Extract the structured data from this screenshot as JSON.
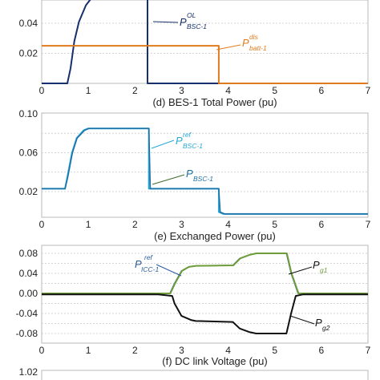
{
  "chart_data": [
    {
      "type": "line",
      "title": "",
      "x_ticks": [
        "0",
        "1",
        "2",
        "3",
        "4",
        "5",
        "6",
        "7"
      ],
      "xlim": [
        0,
        7
      ],
      "y_ticks": [
        "0.04",
        "0.02"
      ],
      "grid": true,
      "series": [
        {
          "name": "P_BSC-1^OL",
          "color": "#16306b",
          "points": [
            [
              0,
              0
            ],
            [
              0.55,
              0
            ],
            [
              0.62,
              0.01
            ],
            [
              0.7,
              0.028
            ],
            [
              0.8,
              0.041
            ],
            [
              0.95,
              0.052
            ],
            [
              1.1,
              0.058
            ],
            [
              2.27,
              0.066
            ],
            [
              2.27,
              0
            ],
            [
              7,
              0
            ]
          ]
        },
        {
          "name": "P_batt-1^dis",
          "color": "#e07b1c",
          "points": [
            [
              0,
              0.025
            ],
            [
              3.8,
              0.025
            ],
            [
              3.8,
              0
            ],
            [
              7,
              0
            ]
          ]
        }
      ],
      "annotations": [
        {
          "text": "P",
          "sup": "OL",
          "sub": "BSC-1",
          "color": "#16306b"
        },
        {
          "text": "P",
          "sup": "dis",
          "sub": "batt-1",
          "color": "#e07b1c"
        }
      ]
    },
    {
      "type": "line",
      "title": "(d) BES-1 Total Power (pu)",
      "x_ticks": [
        "0",
        "1",
        "2",
        "3",
        "4",
        "5",
        "6",
        "7"
      ],
      "xlim": [
        0,
        7
      ],
      "ylim": [
        0,
        0.1
      ],
      "y_ticks": [
        "0.10",
        "0.06",
        "0.02"
      ],
      "grid": true,
      "series": [
        {
          "name": "P_BSC-1^ref",
          "color": "#27a8d9",
          "points": [
            [
              0,
              0.023
            ],
            [
              0.5,
              0.023
            ],
            [
              0.55,
              0.035
            ],
            [
              0.65,
              0.06
            ],
            [
              0.75,
              0.075
            ],
            [
              0.9,
              0.083
            ],
            [
              1,
              0.085
            ],
            [
              2.3,
              0.085
            ],
            [
              2.3,
              0.023
            ],
            [
              3.8,
              0.023
            ],
            [
              3.8,
              -0.001
            ],
            [
              3.9,
              -0.003
            ],
            [
              7,
              -0.003
            ]
          ]
        },
        {
          "name": "P_BSC-1",
          "color": "#1e6fa6",
          "points": [
            [
              0,
              0.023
            ],
            [
              0.5,
              0.023
            ],
            [
              0.56,
              0.035
            ],
            [
              0.66,
              0.06
            ],
            [
              0.76,
              0.075
            ],
            [
              0.92,
              0.083
            ],
            [
              1.02,
              0.085
            ],
            [
              2.3,
              0.085
            ],
            [
              2.33,
              0.023
            ],
            [
              3.8,
              0.023
            ],
            [
              3.83,
              -0.001
            ],
            [
              3.93,
              -0.003
            ],
            [
              7,
              -0.003
            ]
          ]
        }
      ],
      "annotations": [
        {
          "text": "P",
          "sup": "ref",
          "sub": "BSC-1",
          "color": "#27a8d9"
        },
        {
          "text": "P",
          "sup": "",
          "sub": "BSC-1",
          "color": "#1e6fa6"
        }
      ]
    },
    {
      "type": "line",
      "title": "(e) Exchanged Power (pu)",
      "x_ticks": [
        "0",
        "1",
        "2",
        "3",
        "4",
        "5",
        "6",
        "7"
      ],
      "xlim": [
        0,
        7
      ],
      "ylim": [
        -0.1,
        0.09
      ],
      "y_ticks": [
        "0.08",
        "0.04",
        "0.00",
        "-0.04",
        "-0.08"
      ],
      "grid": true,
      "series": [
        {
          "name": "P_ICC-1^ref",
          "color": "#2a5c9e",
          "points": [
            [
              0,
              0
            ],
            [
              2.75,
              0
            ],
            [
              2.85,
              0.02
            ],
            [
              3,
              0.045
            ],
            [
              3.15,
              0.053
            ],
            [
              3.3,
              0.055
            ],
            [
              4.1,
              0.056
            ],
            [
              4.25,
              0.07
            ],
            [
              4.45,
              0.077
            ],
            [
              4.6,
              0.08
            ],
            [
              5.25,
              0.08
            ],
            [
              5.35,
              0.04
            ],
            [
              5.5,
              0
            ],
            [
              7,
              0
            ]
          ]
        },
        {
          "name": "P_g1",
          "color": "#6e9d3a",
          "points": [
            [
              0,
              0
            ],
            [
              2.76,
              0
            ],
            [
              2.86,
              0.02
            ],
            [
              3.01,
              0.045
            ],
            [
              3.16,
              0.053
            ],
            [
              3.31,
              0.055
            ],
            [
              4.11,
              0.056
            ],
            [
              4.26,
              0.07
            ],
            [
              4.46,
              0.077
            ],
            [
              4.61,
              0.08
            ],
            [
              5.26,
              0.08
            ],
            [
              5.36,
              0.04
            ],
            [
              5.51,
              0
            ],
            [
              7,
              0
            ]
          ]
        },
        {
          "name": "P_g2",
          "color": "#111111",
          "points": [
            [
              0,
              -0.002
            ],
            [
              2.5,
              -0.002
            ],
            [
              2.8,
              -0.005
            ],
            [
              2.85,
              -0.02
            ],
            [
              3,
              -0.045
            ],
            [
              3.2,
              -0.053
            ],
            [
              3.3,
              -0.055
            ],
            [
              4.1,
              -0.057
            ],
            [
              4.25,
              -0.07
            ],
            [
              4.45,
              -0.077
            ],
            [
              4.6,
              -0.08
            ],
            [
              5.25,
              -0.08
            ],
            [
              5.35,
              -0.04
            ],
            [
              5.45,
              -0.005
            ],
            [
              5.6,
              -0.002
            ],
            [
              7,
              -0.002
            ]
          ]
        }
      ],
      "annotations": [
        {
          "text": "P",
          "sup": "ref",
          "sub": "ICC-1",
          "color": "#2a5c9e"
        },
        {
          "text": "P",
          "sup": "",
          "sub": "g1",
          "color": "#6e9d3a"
        },
        {
          "text": "P",
          "sup": "",
          "sub": "g2",
          "color": "#111111"
        }
      ]
    },
    {
      "type": "line",
      "title": "(f) DC link Voltage (pu)",
      "y_ticks": [
        "1.02"
      ],
      "series": []
    }
  ]
}
